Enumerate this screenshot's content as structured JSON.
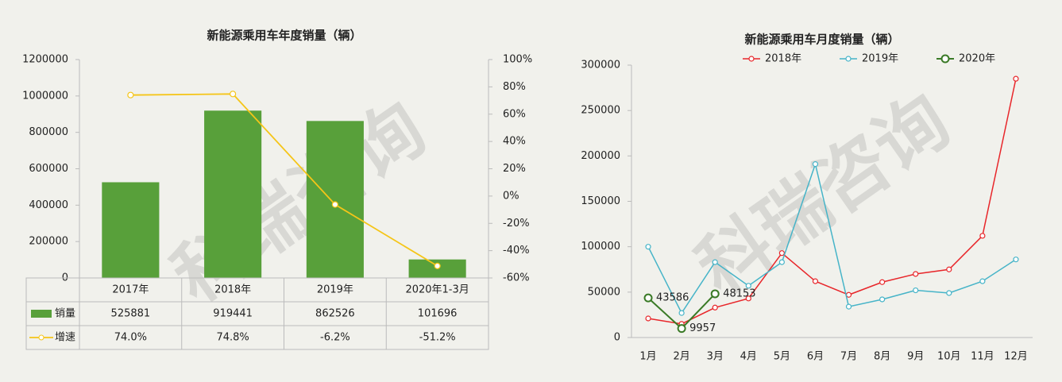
{
  "watermark": "科瑞咨询",
  "chart_data": [
    {
      "type": "bar",
      "title": "新能源乘用车年度销量（辆）",
      "categories": [
        "2017年",
        "2018年",
        "2019年",
        "2020年1-3月"
      ],
      "series": [
        {
          "name": "销量",
          "type": "bar",
          "color": "#58a03a",
          "values": [
            525881,
            919441,
            862526,
            101696
          ]
        },
        {
          "name": "增速",
          "type": "line",
          "axis": "y2",
          "color": "#f5c518",
          "values": [
            74.0,
            74.8,
            -6.2,
            -51.2
          ],
          "value_labels": [
            "74.0%",
            "74.8%",
            "-6.2%",
            "-51.2%"
          ]
        }
      ],
      "ylim": [
        0,
        1200000
      ],
      "yticks": [
        0,
        200000,
        400000,
        600000,
        800000,
        1000000,
        1200000
      ],
      "y2lim": [
        -60,
        100
      ],
      "y2ticks": [
        {
          "value": -60,
          "label": "-60%"
        },
        {
          "value": -40,
          "label": "-40%"
        },
        {
          "value": -20,
          "label": "-20%"
        },
        {
          "value": 0,
          "label": "0%"
        },
        {
          "value": 20,
          "label": "20%"
        },
        {
          "value": 40,
          "label": "40%"
        },
        {
          "value": 60,
          "label": "60%"
        },
        {
          "value": 80,
          "label": "80%"
        },
        {
          "value": 100,
          "label": "100%"
        }
      ],
      "data_table": true
    },
    {
      "type": "line",
      "title": "新能源乘用车月度销量（辆）",
      "categories": [
        "1月",
        "2月",
        "3月",
        "4月",
        "5月",
        "6月",
        "7月",
        "8月",
        "9月",
        "10月",
        "11月",
        "12月"
      ],
      "series": [
        {
          "name": "2018年",
          "color": "#e8262a",
          "values": [
            21000,
            15000,
            33000,
            43000,
            93000,
            62000,
            47000,
            61000,
            70000,
            75000,
            112000,
            285000
          ]
        },
        {
          "name": "2019年",
          "color": "#46b4c8",
          "values": [
            100000,
            27000,
            83000,
            57000,
            83000,
            191000,
            34000,
            42000,
            52000,
            49000,
            62000,
            86000
          ]
        },
        {
          "name": "2020年",
          "color": "#3a7a26",
          "values": [
            43586,
            9957,
            48153,
            null,
            null,
            null,
            null,
            null,
            null,
            null,
            null,
            null
          ],
          "show_labels": true
        }
      ],
      "ylim": [
        0,
        300000
      ],
      "yticks": [
        0,
        50000,
        100000,
        150000,
        200000,
        250000,
        300000
      ],
      "legend": "top"
    }
  ]
}
